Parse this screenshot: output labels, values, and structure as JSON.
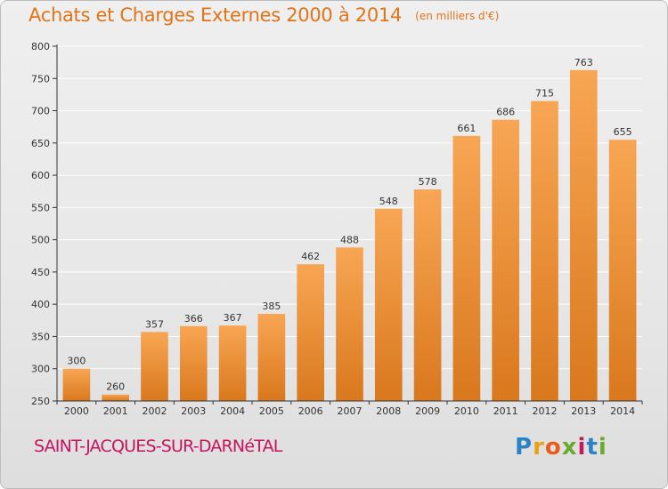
{
  "page": {
    "commune": "SAINT-JACQUES-SUR-DARNéTAL",
    "brand": {
      "letters": [
        "P",
        "r",
        "o",
        "x",
        "i",
        "t",
        "i"
      ],
      "colors": [
        "#2b83c6",
        "#e8a213",
        "#e65d1c",
        "#6aa92d",
        "#c41a5d",
        "#2b83c6",
        "#6aa92d"
      ]
    }
  },
  "colors": {
    "title": "#e07418",
    "commune": "#c7145f",
    "bar_light": "#f8a654",
    "bar_dark": "#d9781d",
    "gridline": "#ffffff",
    "axis": "#333333"
  },
  "chart_data": {
    "type": "bar",
    "title": "Achats et Charges Externes 2000 à 2014",
    "subtitle": "(en milliers d'€)",
    "xlabel": "",
    "ylabel": "",
    "categories": [
      "2000",
      "2001",
      "2002",
      "2003",
      "2004",
      "2005",
      "2006",
      "2007",
      "2008",
      "2009",
      "2010",
      "2011",
      "2012",
      "2013",
      "2014"
    ],
    "values": [
      300,
      260,
      357,
      366,
      367,
      385,
      462,
      488,
      548,
      578,
      661,
      686,
      715,
      763,
      655
    ],
    "ylim": [
      250,
      800
    ],
    "yticks": [
      250,
      300,
      350,
      400,
      450,
      500,
      550,
      600,
      650,
      700,
      750,
      800
    ],
    "grid": true,
    "legend": "none"
  }
}
